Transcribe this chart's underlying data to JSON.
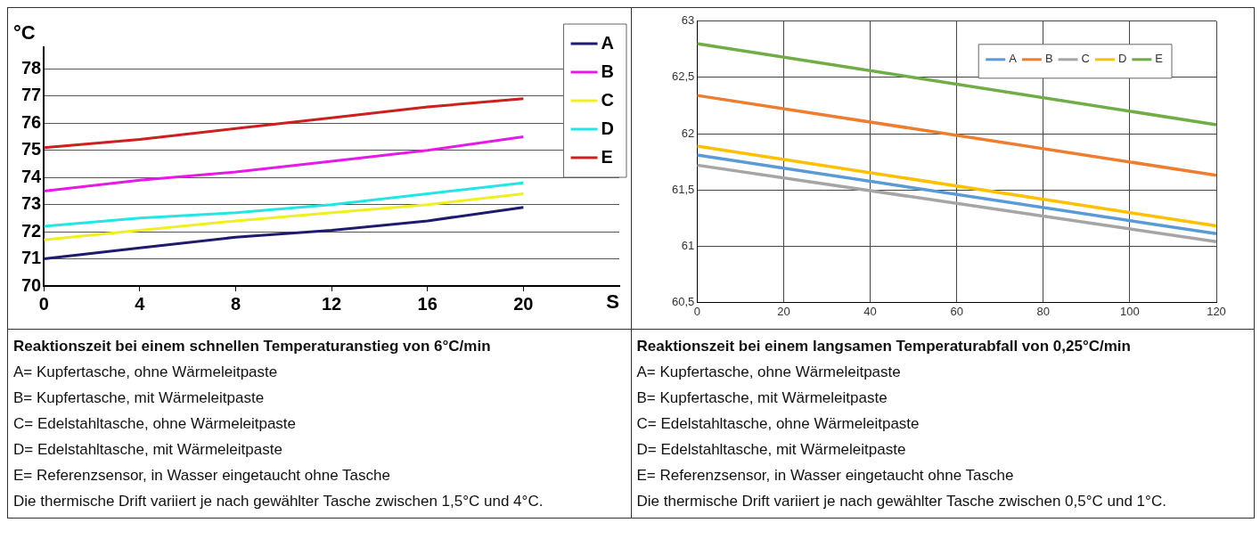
{
  "chart_data": [
    {
      "type": "line",
      "title": "Reaktionszeit bei einem schnellen Temperaturanstieg von 6°C/min",
      "xlabel": "S",
      "ylabel": "°C",
      "xlim": [
        0,
        24
      ],
      "xticks": [
        0,
        4,
        8,
        12,
        16,
        20
      ],
      "ylim": [
        70,
        78.8
      ],
      "yticks": [
        70,
        71,
        72,
        73,
        74,
        75,
        76,
        77,
        78
      ],
      "grid": "y",
      "legend": "top right",
      "marker": "none",
      "line_style": "solid",
      "x": [
        0,
        4,
        8,
        12,
        16,
        20
      ],
      "series": [
        {
          "name": "A",
          "color": "#1f1a6e",
          "values": [
            71,
            71.4,
            71.8,
            72.05,
            72.4,
            72.9
          ]
        },
        {
          "name": "B",
          "color": "#e619e6",
          "values": [
            73.5,
            73.9,
            74.2,
            74.6,
            75.0,
            75.5
          ]
        },
        {
          "name": "C",
          "color": "#f0f020",
          "values": [
            71.7,
            72.05,
            72.4,
            72.7,
            73.0,
            73.4
          ]
        },
        {
          "name": "D",
          "color": "#22e6e6",
          "values": [
            72.2,
            72.5,
            72.7,
            73.0,
            73.4,
            73.8
          ]
        },
        {
          "name": "E",
          "color": "#cc1f1f",
          "values": [
            75.1,
            75.4,
            75.8,
            76.2,
            76.6,
            76.9
          ]
        }
      ],
      "annotations": [
        "A= Kupfertasche, ohne Wärmeleitpaste",
        "B= Kupfertasche, mit Wärmeleitpaste",
        "C= Edelstahltasche, ohne Wärmeleitpaste",
        "D= Edelstahltasche, mit Wärmeleitpaste",
        "E= Referenzsensor, in Wasser eingetaucht ohne Tasche",
        "Die thermische Drift variiert je nach gewählter Tasche zwischen 1,5°C und 4°C."
      ]
    },
    {
      "type": "line",
      "title": "Reaktionszeit bei einem langsamen Temperaturabfall von 0,25°C/min",
      "xlim": [
        0,
        120
      ],
      "xticks": [
        0,
        20,
        40,
        60,
        80,
        100,
        120
      ],
      "ylim": [
        60.5,
        63
      ],
      "yticks": [
        {
          "value": 60.5,
          "label": "60,5"
        },
        61,
        {
          "value": 61.5,
          "label": "61,5"
        },
        62,
        {
          "value": 62.5,
          "label": "62,5"
        },
        63
      ],
      "grid": true,
      "legend": "top right",
      "marker": "none",
      "line_style": "solid",
      "x": [
        0,
        120
      ],
      "series": [
        {
          "name": "A",
          "color": "#5b9bd5",
          "values": [
            61.81,
            61.11
          ]
        },
        {
          "name": "B",
          "color": "#ed7d31",
          "values": [
            62.34,
            61.63
          ]
        },
        {
          "name": "C",
          "color": "#a5a5a5",
          "values": [
            61.72,
            61.04
          ]
        },
        {
          "name": "D",
          "color": "#ffc000",
          "values": [
            61.89,
            61.18
          ]
        },
        {
          "name": "E",
          "color": "#70ad47",
          "values": [
            62.8,
            62.08
          ]
        }
      ],
      "annotations": [
        "A= Kupfertasche, ohne Wärmeleitpaste",
        "B= Kupfertasche, mit Wärmeleitpaste",
        "C= Edelstahltasche, ohne Wärmeleitpaste",
        "D= Edelstahltasche, mit Wärmeleitpaste",
        "E= Referenzsensor, in Wasser eingetaucht ohne Tasche",
        "Die thermische Drift variiert je nach gewählter Tasche zwischen 0,5°C und 1°C."
      ]
    }
  ]
}
